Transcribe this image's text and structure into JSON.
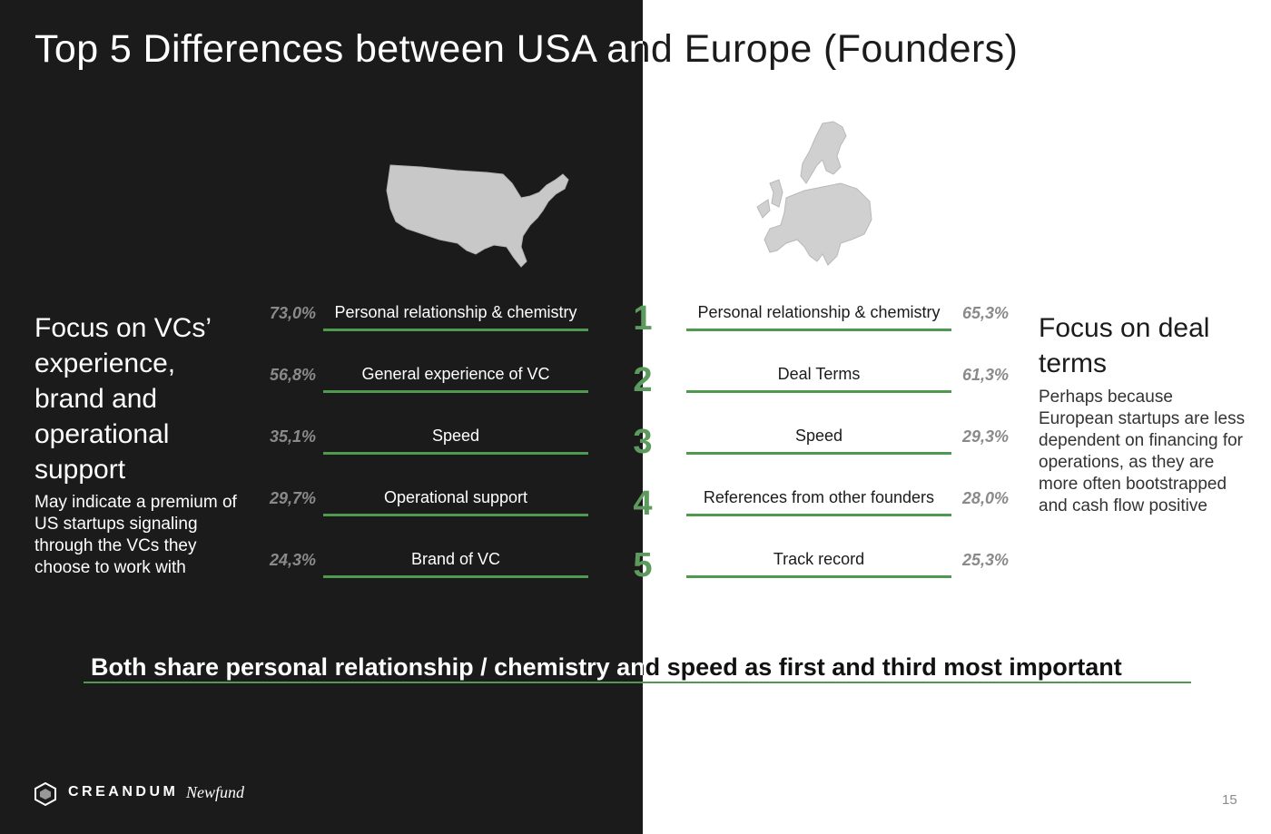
{
  "title": "Top 5 Differences between USA  and Europe (Founders)",
  "usa": {
    "heading": "Focus on VCs’ experience, brand and operational support",
    "body": "May indicate a premium of US startups signaling through the VCs they choose to work with",
    "items": [
      {
        "pct": "73,0%",
        "label": "Personal relationship & chemistry"
      },
      {
        "pct": "56,8%",
        "label": "General experience of VC"
      },
      {
        "pct": "35,1%",
        "label": "Speed"
      },
      {
        "pct": "29,7%",
        "label": "Operational support"
      },
      {
        "pct": "24,3%",
        "label": "Brand of VC"
      }
    ]
  },
  "ranks": [
    "1",
    "2",
    "3",
    "4",
    "5"
  ],
  "europe": {
    "heading": "Focus on deal terms",
    "body": "Perhaps because European startups are less dependent on financing for operations, as they are more often bootstrapped and cash flow positive",
    "items": [
      {
        "pct": "65,3%",
        "label": "Personal relationship & chemistry"
      },
      {
        "pct": "61,3%",
        "label": "Deal Terms"
      },
      {
        "pct": "29,3%",
        "label": "Speed"
      },
      {
        "pct": "28,0%",
        "label": "References from other founders"
      },
      {
        "pct": "25,3%",
        "label": "Track record"
      }
    ]
  },
  "banner": "Both share personal relationship / chemistry and speed as first and third most important",
  "footer": {
    "creandum": "CREANDUM",
    "newfund": "Newfund",
    "page_number": "15"
  },
  "colors": {
    "dark_bg": "#1b1b1b",
    "accent_green": "#4f9a4f",
    "rank_green": "#5d9a5d",
    "muted_gray": "#8a8a8a"
  }
}
